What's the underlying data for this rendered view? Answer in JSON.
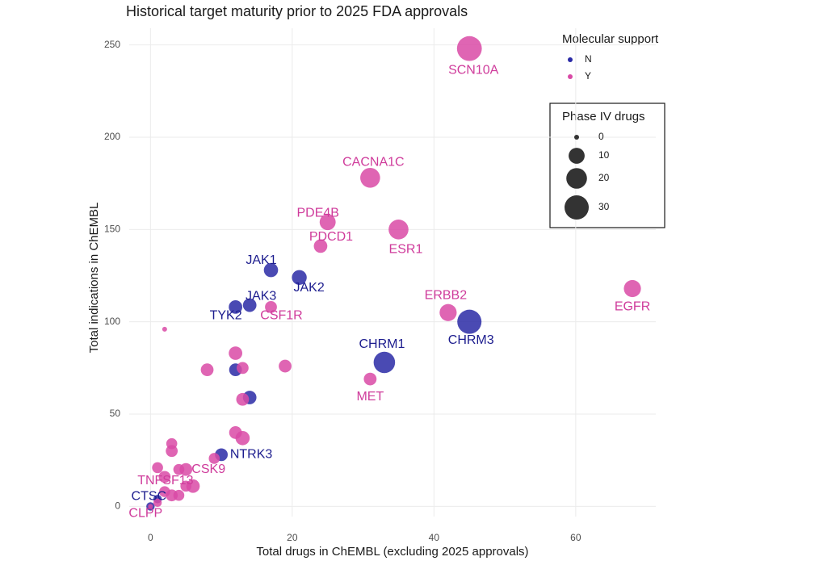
{
  "chart_data": {
    "type": "scatter",
    "title": "Historical target maturity prior to 2025 FDA approvals",
    "x_label": "Total drugs in ChEMBL (excluding 2025 approvals)",
    "y_label": "Total indications in ChEMBL",
    "xlim": [
      -3,
      71.3
    ],
    "ylim": [
      -5.5,
      259
    ],
    "xticks": [
      0,
      20,
      40,
      60
    ],
    "yticks": [
      0,
      50,
      100,
      150,
      200,
      250
    ],
    "grid": true,
    "color_legend_title": "Molecular support",
    "size_legend": {
      "title": "Phase IV drugs",
      "values": [
        0,
        10,
        20,
        30
      ]
    },
    "series": [
      {
        "name": "N",
        "color": "#2a2aa6",
        "label_color": "#1c1c8e",
        "x": [
          17,
          21,
          14,
          12,
          45,
          33,
          10,
          0,
          12,
          14,
          1
        ],
        "y": [
          128,
          124,
          109,
          108,
          100,
          78,
          28,
          0,
          74,
          59,
          4
        ],
        "sizes": [
          7,
          8,
          6,
          6,
          30,
          22,
          5,
          1,
          5,
          6,
          1
        ],
        "labels": [
          "JAK1",
          "JAK2",
          "JAK3",
          "TYK2",
          "CHRM3",
          "CHRM1",
          "NTRK3",
          "CTSC",
          null,
          null,
          null
        ]
      },
      {
        "name": "Y",
        "color": "#d94aa6",
        "label_color": "#cf3b9b",
        "x": [
          45,
          31,
          25,
          35,
          24,
          17,
          42,
          68,
          31,
          5,
          2,
          0,
          2,
          12,
          8,
          13,
          19,
          13,
          12,
          13,
          3,
          3,
          1,
          4,
          9,
          6,
          5,
          3,
          4,
          2,
          1
        ],
        "y": [
          248,
          178,
          154,
          150,
          141,
          108,
          105,
          118,
          69,
          20,
          16,
          0,
          96,
          83,
          74,
          75,
          76,
          58,
          40,
          37,
          34,
          30,
          21,
          20,
          26,
          11,
          11,
          6,
          6,
          8,
          2
        ],
        "sizes": [
          32,
          18,
          10,
          18,
          6,
          4,
          12,
          12,
          5,
          5,
          4,
          0,
          0,
          6,
          5,
          4,
          5,
          5,
          5,
          7,
          3,
          4,
          3,
          3,
          3,
          6,
          3,
          4,
          3,
          3,
          1
        ],
        "labels": [
          "SCN10A",
          "CACNA1C",
          "PDE4B",
          "ESR1",
          "PDCD1",
          "CSF1R",
          "ERBB2",
          "EGFR",
          "MET",
          "CSK9",
          "TNFSF13",
          "CLPP",
          null,
          null,
          null,
          null,
          null,
          null,
          null,
          null,
          null,
          null,
          null,
          null,
          null,
          null,
          null,
          null,
          null,
          null,
          null
        ]
      }
    ]
  }
}
